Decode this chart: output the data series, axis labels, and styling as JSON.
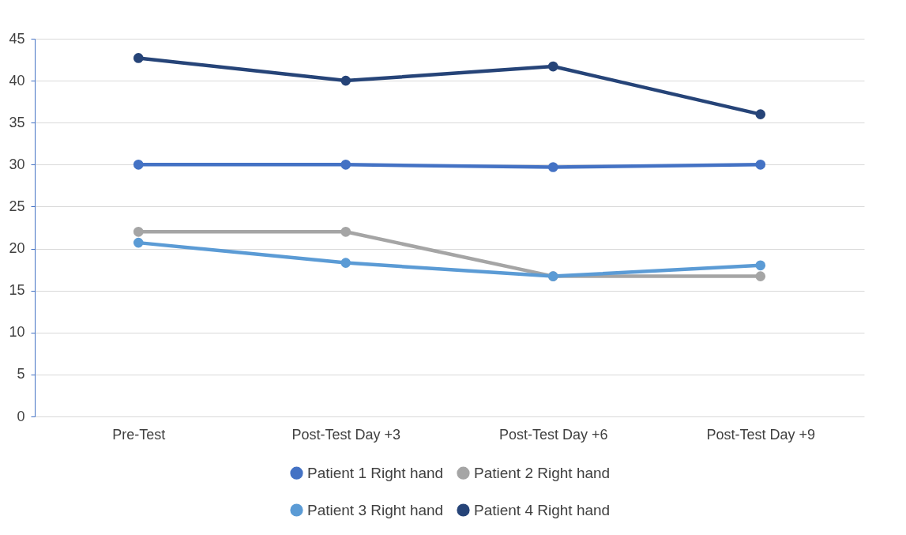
{
  "chart_data": {
    "type": "line",
    "categories": [
      "Pre-Test",
      "Post-Test Day +3",
      "Post-Test Day +6",
      "Post-Test Day +9"
    ],
    "series": [
      {
        "name": "Patient 1 Right hand",
        "color": "#4472c4",
        "values": [
          30,
          30,
          29.7,
          30
        ]
      },
      {
        "name": "Patient 2 Right hand",
        "color": "#a5a5a5",
        "values": [
          22,
          22,
          16.7,
          16.7
        ]
      },
      {
        "name": "Patient 3 Right hand",
        "color": "#5b9bd5",
        "values": [
          20.7,
          18.3,
          16.7,
          18
        ]
      },
      {
        "name": "Patient 4 Right hand",
        "color": "#264478",
        "values": [
          42.7,
          40,
          41.7,
          36
        ]
      }
    ],
    "ylim": [
      0,
      45
    ],
    "yticks": [
      0,
      5,
      10,
      15,
      20,
      25,
      30,
      35,
      40,
      45
    ],
    "grid": "y",
    "legend": "bottom",
    "marker": "circle",
    "line_style": "solid"
  }
}
